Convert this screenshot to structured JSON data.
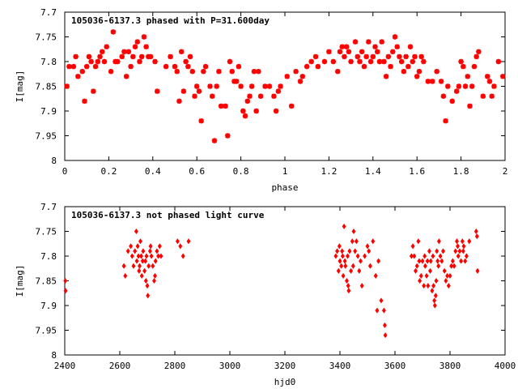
{
  "chart_data": [
    {
      "type": "scatter",
      "title": "105036-6137.3 phased with P=31.600day",
      "xlabel": "phase",
      "ylabel": "I[mag]",
      "xlim": [
        0,
        2
      ],
      "ylim": [
        8,
        7.7
      ],
      "y_inverted": true,
      "grid": false,
      "legend": "none",
      "marker_color": "#ff0000",
      "x_ticks": [
        "0",
        "0.2",
        "0.4",
        "0.6",
        "0.8",
        "1",
        "1.2",
        "1.4",
        "1.6",
        "1.8",
        "2"
      ],
      "y_ticks": [
        "7.7",
        "7.75",
        "7.8",
        "7.85",
        "7.9",
        "7.95",
        "8"
      ],
      "points": [
        [
          0.01,
          7.85
        ],
        [
          0.02,
          7.81
        ],
        [
          0.04,
          7.81
        ],
        [
          0.05,
          7.79
        ],
        [
          0.06,
          7.83
        ],
        [
          0.08,
          7.82
        ],
        [
          0.09,
          7.88
        ],
        [
          0.1,
          7.81
        ],
        [
          0.11,
          7.79
        ],
        [
          0.12,
          7.8
        ],
        [
          0.13,
          7.86
        ],
        [
          0.14,
          7.81
        ],
        [
          0.15,
          7.8
        ],
        [
          0.16,
          7.79
        ],
        [
          0.17,
          7.78
        ],
        [
          0.18,
          7.8
        ],
        [
          0.19,
          7.77
        ],
        [
          0.21,
          7.82
        ],
        [
          0.22,
          7.74
        ],
        [
          0.23,
          7.8
        ],
        [
          0.24,
          7.8
        ],
        [
          0.26,
          7.79
        ],
        [
          0.27,
          7.78
        ],
        [
          0.28,
          7.83
        ],
        [
          0.29,
          7.78
        ],
        [
          0.3,
          7.81
        ],
        [
          0.31,
          7.79
        ],
        [
          0.32,
          7.77
        ],
        [
          0.33,
          7.76
        ],
        [
          0.34,
          7.8
        ],
        [
          0.35,
          7.79
        ],
        [
          0.36,
          7.75
        ],
        [
          0.37,
          7.77
        ],
        [
          0.38,
          7.79
        ],
        [
          0.39,
          7.79
        ],
        [
          0.41,
          7.8
        ],
        [
          0.42,
          7.86
        ],
        [
          0.46,
          7.81
        ],
        [
          0.48,
          7.79
        ],
        [
          0.5,
          7.81
        ],
        [
          0.51,
          7.82
        ],
        [
          0.52,
          7.88
        ],
        [
          0.53,
          7.78
        ],
        [
          0.54,
          7.86
        ],
        [
          0.55,
          7.8
        ],
        [
          0.56,
          7.81
        ],
        [
          0.57,
          7.79
        ],
        [
          0.58,
          7.82
        ],
        [
          0.59,
          7.87
        ],
        [
          0.6,
          7.85
        ],
        [
          0.61,
          7.86
        ],
        [
          0.62,
          7.92
        ],
        [
          0.63,
          7.82
        ],
        [
          0.64,
          7.81
        ],
        [
          0.66,
          7.85
        ],
        [
          0.67,
          7.87
        ],
        [
          0.68,
          7.96
        ],
        [
          0.69,
          7.85
        ],
        [
          0.7,
          7.82
        ],
        [
          0.71,
          7.89
        ],
        [
          0.73,
          7.89
        ],
        [
          0.74,
          7.95
        ],
        [
          0.75,
          7.8
        ],
        [
          0.76,
          7.82
        ],
        [
          0.77,
          7.84
        ],
        [
          0.78,
          7.84
        ],
        [
          0.79,
          7.81
        ],
        [
          0.8,
          7.85
        ],
        [
          0.81,
          7.9
        ],
        [
          0.82,
          7.91
        ],
        [
          0.83,
          7.88
        ],
        [
          0.84,
          7.87
        ],
        [
          0.85,
          7.85
        ],
        [
          0.86,
          7.82
        ],
        [
          0.87,
          7.9
        ],
        [
          0.88,
          7.82
        ],
        [
          0.89,
          7.87
        ],
        [
          0.91,
          7.85
        ],
        [
          0.93,
          7.85
        ],
        [
          0.95,
          7.87
        ],
        [
          0.96,
          7.9
        ],
        [
          0.97,
          7.86
        ],
        [
          0.98,
          7.85
        ],
        [
          1.01,
          7.83
        ],
        [
          1.03,
          7.89
        ],
        [
          1.05,
          7.82
        ],
        [
          1.07,
          7.84
        ],
        [
          1.08,
          7.83
        ],
        [
          1.1,
          7.81
        ],
        [
          1.12,
          7.8
        ],
        [
          1.14,
          7.79
        ],
        [
          1.15,
          7.81
        ],
        [
          1.18,
          7.8
        ],
        [
          1.2,
          7.78
        ],
        [
          1.22,
          7.8
        ],
        [
          1.24,
          7.82
        ],
        [
          1.25,
          7.78
        ],
        [
          1.26,
          7.77
        ],
        [
          1.27,
          7.79
        ],
        [
          1.28,
          7.77
        ],
        [
          1.29,
          7.78
        ],
        [
          1.3,
          7.8
        ],
        [
          1.32,
          7.76
        ],
        [
          1.33,
          7.79
        ],
        [
          1.34,
          7.8
        ],
        [
          1.35,
          7.78
        ],
        [
          1.36,
          7.81
        ],
        [
          1.37,
          7.79
        ],
        [
          1.38,
          7.76
        ],
        [
          1.39,
          7.8
        ],
        [
          1.4,
          7.79
        ],
        [
          1.41,
          7.77
        ],
        [
          1.42,
          7.78
        ],
        [
          1.43,
          7.8
        ],
        [
          1.44,
          7.76
        ],
        [
          1.45,
          7.8
        ],
        [
          1.46,
          7.83
        ],
        [
          1.47,
          7.79
        ],
        [
          1.48,
          7.81
        ],
        [
          1.49,
          7.78
        ],
        [
          1.5,
          7.75
        ],
        [
          1.51,
          7.77
        ],
        [
          1.52,
          7.79
        ],
        [
          1.53,
          7.8
        ],
        [
          1.54,
          7.82
        ],
        [
          1.55,
          7.79
        ],
        [
          1.56,
          7.81
        ],
        [
          1.57,
          7.77
        ],
        [
          1.58,
          7.8
        ],
        [
          1.59,
          7.79
        ],
        [
          1.6,
          7.83
        ],
        [
          1.61,
          7.82
        ],
        [
          1.62,
          7.79
        ],
        [
          1.63,
          7.8
        ],
        [
          1.65,
          7.84
        ],
        [
          1.67,
          7.84
        ],
        [
          1.69,
          7.82
        ],
        [
          1.71,
          7.84
        ],
        [
          1.72,
          7.87
        ],
        [
          1.73,
          7.92
        ],
        [
          1.74,
          7.85
        ],
        [
          1.76,
          7.88
        ],
        [
          1.78,
          7.86
        ],
        [
          1.79,
          7.85
        ],
        [
          1.8,
          7.8
        ],
        [
          1.81,
          7.81
        ],
        [
          1.82,
          7.85
        ],
        [
          1.83,
          7.83
        ],
        [
          1.84,
          7.89
        ],
        [
          1.85,
          7.85
        ],
        [
          1.86,
          7.81
        ],
        [
          1.87,
          7.79
        ],
        [
          1.88,
          7.78
        ],
        [
          1.9,
          7.87
        ],
        [
          1.92,
          7.83
        ],
        [
          1.93,
          7.84
        ],
        [
          1.94,
          7.87
        ],
        [
          1.95,
          7.85
        ],
        [
          1.97,
          7.8
        ],
        [
          1.99,
          7.83
        ]
      ]
    },
    {
      "type": "scatter",
      "title": "105036-6137.3 not phased light curve",
      "xlabel": "hjd0",
      "ylabel": "I[mag]",
      "xlim": [
        2400,
        4000
      ],
      "ylim": [
        8,
        7.7
      ],
      "y_inverted": true,
      "grid": false,
      "legend": "none",
      "marker_color": "#ff0000",
      "x_ticks": [
        "2400",
        "2600",
        "2800",
        "3000",
        "3200",
        "3400",
        "3600",
        "3800",
        "4000"
      ],
      "y_ticks": [
        "7.7",
        "7.75",
        "7.8",
        "7.85",
        "7.9",
        "7.95",
        "8"
      ],
      "points": [
        [
          2402,
          7.85
        ],
        [
          2403,
          7.87
        ],
        [
          2615,
          7.82
        ],
        [
          2620,
          7.84
        ],
        [
          2630,
          7.79
        ],
        [
          2640,
          7.78
        ],
        [
          2645,
          7.8
        ],
        [
          2650,
          7.82
        ],
        [
          2655,
          7.79
        ],
        [
          2660,
          7.75
        ],
        [
          2662,
          7.81
        ],
        [
          2665,
          7.78
        ],
        [
          2668,
          7.8
        ],
        [
          2670,
          7.83
        ],
        [
          2672,
          7.82
        ],
        [
          2675,
          7.77
        ],
        [
          2678,
          7.8
        ],
        [
          2680,
          7.84
        ],
        [
          2683,
          7.81
        ],
        [
          2685,
          7.79
        ],
        [
          2690,
          7.83
        ],
        [
          2693,
          7.81
        ],
        [
          2695,
          7.85
        ],
        [
          2697,
          7.8
        ],
        [
          2700,
          7.86
        ],
        [
          2702,
          7.88
        ],
        [
          2705,
          7.82
        ],
        [
          2710,
          7.79
        ],
        [
          2712,
          7.78
        ],
        [
          2715,
          7.8
        ],
        [
          2720,
          7.82
        ],
        [
          2725,
          7.85
        ],
        [
          2728,
          7.84
        ],
        [
          2730,
          7.81
        ],
        [
          2735,
          7.79
        ],
        [
          2740,
          7.8
        ],
        [
          2745,
          7.78
        ],
        [
          2750,
          7.8
        ],
        [
          2810,
          7.77
        ],
        [
          2820,
          7.78
        ],
        [
          2830,
          7.8
        ],
        [
          2850,
          7.77
        ],
        [
          3385,
          7.8
        ],
        [
          3390,
          7.79
        ],
        [
          3395,
          7.83
        ],
        [
          3398,
          7.78
        ],
        [
          3400,
          7.81
        ],
        [
          3405,
          7.82
        ],
        [
          3408,
          7.79
        ],
        [
          3410,
          7.8
        ],
        [
          3412,
          7.84
        ],
        [
          3415,
          7.74
        ],
        [
          3418,
          7.81
        ],
        [
          3420,
          7.82
        ],
        [
          3425,
          7.85
        ],
        [
          3428,
          7.8
        ],
        [
          3430,
          7.86
        ],
        [
          3432,
          7.87
        ],
        [
          3435,
          7.79
        ],
        [
          3440,
          7.83
        ],
        [
          3445,
          7.77
        ],
        [
          3448,
          7.82
        ],
        [
          3450,
          7.75
        ],
        [
          3455,
          7.79
        ],
        [
          3460,
          7.77
        ],
        [
          3465,
          7.8
        ],
        [
          3470,
          7.83
        ],
        [
          3475,
          7.81
        ],
        [
          3480,
          7.86
        ],
        [
          3490,
          7.8
        ],
        [
          3500,
          7.78
        ],
        [
          3505,
          7.79
        ],
        [
          3510,
          7.82
        ],
        [
          3520,
          7.77
        ],
        [
          3530,
          7.84
        ],
        [
          3535,
          7.91
        ],
        [
          3540,
          7.81
        ],
        [
          3550,
          7.89
        ],
        [
          3560,
          7.91
        ],
        [
          3563,
          7.94
        ],
        [
          3565,
          7.96
        ],
        [
          3660,
          7.8
        ],
        [
          3665,
          7.78
        ],
        [
          3670,
          7.8
        ],
        [
          3675,
          7.83
        ],
        [
          3680,
          7.82
        ],
        [
          3685,
          7.77
        ],
        [
          3688,
          7.81
        ],
        [
          3690,
          7.85
        ],
        [
          3695,
          7.84
        ],
        [
          3700,
          7.81
        ],
        [
          3705,
          7.86
        ],
        [
          3708,
          7.8
        ],
        [
          3710,
          7.82
        ],
        [
          3715,
          7.84
        ],
        [
          3718,
          7.81
        ],
        [
          3720,
          7.86
        ],
        [
          3725,
          7.79
        ],
        [
          3728,
          7.83
        ],
        [
          3730,
          7.81
        ],
        [
          3735,
          7.87
        ],
        [
          3738,
          7.8
        ],
        [
          3740,
          7.86
        ],
        [
          3743,
          7.89
        ],
        [
          3745,
          7.9
        ],
        [
          3748,
          7.88
        ],
        [
          3750,
          7.85
        ],
        [
          3752,
          7.79
        ],
        [
          3755,
          7.81
        ],
        [
          3758,
          7.82
        ],
        [
          3760,
          7.77
        ],
        [
          3765,
          7.8
        ],
        [
          3770,
          7.81
        ],
        [
          3775,
          7.79
        ],
        [
          3780,
          7.83
        ],
        [
          3785,
          7.85
        ],
        [
          3790,
          7.84
        ],
        [
          3795,
          7.86
        ],
        [
          3800,
          7.84
        ],
        [
          3805,
          7.82
        ],
        [
          3810,
          7.81
        ],
        [
          3815,
          7.82
        ],
        [
          3820,
          7.79
        ],
        [
          3825,
          7.77
        ],
        [
          3828,
          7.78
        ],
        [
          3830,
          7.8
        ],
        [
          3835,
          7.79
        ],
        [
          3840,
          7.81
        ],
        [
          3845,
          7.77
        ],
        [
          3848,
          7.79
        ],
        [
          3850,
          7.78
        ],
        [
          3855,
          7.81
        ],
        [
          3860,
          7.8
        ],
        [
          3870,
          7.77
        ],
        [
          3895,
          7.75
        ],
        [
          3898,
          7.76
        ],
        [
          3900,
          7.83
        ]
      ]
    }
  ]
}
